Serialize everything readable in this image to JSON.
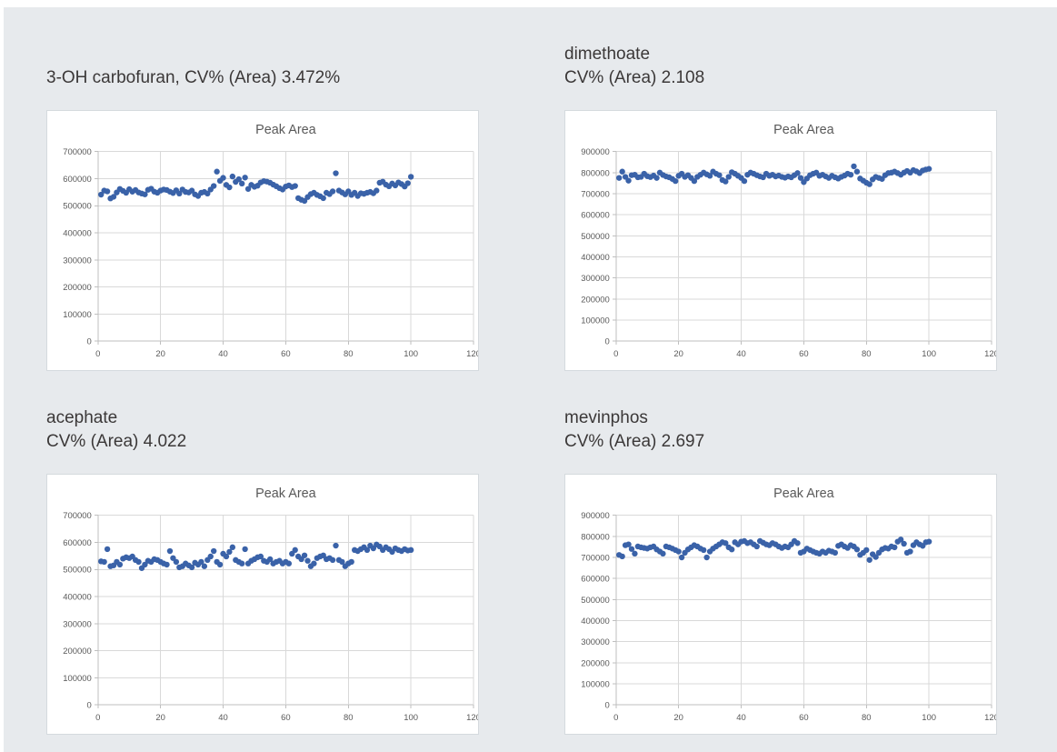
{
  "page": {
    "background_color": "#E7EAED",
    "panel_color": "#FFFFFF",
    "gridline_color": "#D9D9D9",
    "axis_color": "#BFBFBF",
    "heading_text_color": "#3B3838",
    "tick_text_color": "#595959",
    "marker_color": "#3A62A8"
  },
  "chart_data": [
    {
      "type": "scatter",
      "heading_lines": [
        "3-OH carbofuran, CV% (Area) 3.472%"
      ],
      "title": "Peak Area",
      "xlabel": "",
      "ylabel": "",
      "xlim": [
        0,
        120
      ],
      "xticks": [
        0,
        20,
        40,
        60,
        80,
        100,
        120
      ],
      "ylim": [
        0,
        700000
      ],
      "ytick_step": 100000,
      "grid": true,
      "legend": false,
      "marker_color": "#3A62A8",
      "x_start": 1,
      "x_step": 1,
      "values": [
        541000,
        556000,
        553000,
        527000,
        533000,
        549000,
        562000,
        555000,
        548000,
        561000,
        552000,
        558000,
        549000,
        545000,
        542000,
        559000,
        563000,
        552000,
        548000,
        556000,
        560000,
        558000,
        552000,
        547000,
        557000,
        545000,
        560000,
        551000,
        549000,
        556000,
        542000,
        536000,
        548000,
        551000,
        545000,
        560000,
        573000,
        626000,
        592000,
        603000,
        577000,
        568000,
        608000,
        588000,
        598000,
        582000,
        604000,
        562000,
        577000,
        570000,
        574000,
        586000,
        591000,
        589000,
        585000,
        578000,
        572000,
        565000,
        560000,
        571000,
        575000,
        569000,
        573000,
        528000,
        522000,
        518000,
        532000,
        543000,
        548000,
        540000,
        535000,
        528000,
        548000,
        543000,
        553000,
        620000,
        556000,
        549000,
        542000,
        553000,
        540000,
        548000,
        536000,
        546000,
        544000,
        548000,
        551000,
        546000,
        556000,
        585000,
        589000,
        578000,
        572000,
        582000,
        575000,
        586000,
        580000,
        571000,
        583000,
        607000
      ]
    },
    {
      "type": "scatter",
      "heading_lines": [
        "dimethoate",
        "CV% (Area) 2.108"
      ],
      "title": "Peak Area",
      "xlabel": "",
      "ylabel": "",
      "xlim": [
        0,
        120
      ],
      "xticks": [
        0,
        20,
        40,
        60,
        80,
        100,
        120
      ],
      "ylim": [
        0,
        900000
      ],
      "ytick_step": 100000,
      "grid": true,
      "legend": false,
      "marker_color": "#3A62A8",
      "x_start": 1,
      "x_step": 1,
      "values": [
        775000,
        805000,
        780000,
        762000,
        788000,
        790000,
        778000,
        780000,
        795000,
        783000,
        779000,
        786000,
        775000,
        800000,
        789000,
        782000,
        778000,
        770000,
        760000,
        785000,
        795000,
        780000,
        788000,
        775000,
        760000,
        780000,
        790000,
        800000,
        792000,
        785000,
        805000,
        795000,
        788000,
        765000,
        758000,
        780000,
        802000,
        795000,
        785000,
        775000,
        760000,
        790000,
        800000,
        795000,
        788000,
        782000,
        778000,
        795000,
        785000,
        790000,
        782000,
        786000,
        780000,
        776000,
        782000,
        778000,
        788000,
        798000,
        775000,
        755000,
        772000,
        788000,
        795000,
        800000,
        785000,
        790000,
        782000,
        775000,
        785000,
        778000,
        772000,
        780000,
        786000,
        795000,
        790000,
        830000,
        805000,
        772000,
        762000,
        752000,
        745000,
        768000,
        780000,
        775000,
        770000,
        788000,
        798000,
        800000,
        805000,
        798000,
        790000,
        800000,
        808000,
        800000,
        812000,
        806000,
        798000,
        810000,
        815000,
        818000
      ]
    },
    {
      "type": "scatter",
      "heading_lines": [
        "acephate",
        "CV% (Area) 4.022"
      ],
      "title": "Peak Area",
      "xlabel": "",
      "ylabel": "",
      "xlim": [
        0,
        120
      ],
      "xticks": [
        0,
        20,
        40,
        60,
        80,
        100,
        120
      ],
      "ylim": [
        0,
        700000
      ],
      "ytick_step": 100000,
      "grid": true,
      "legend": false,
      "marker_color": "#3A62A8",
      "x_start": 1,
      "x_step": 1,
      "values": [
        530000,
        528000,
        575000,
        512000,
        515000,
        528000,
        518000,
        540000,
        545000,
        542000,
        548000,
        535000,
        528000,
        505000,
        518000,
        532000,
        528000,
        538000,
        535000,
        528000,
        522000,
        518000,
        568000,
        542000,
        528000,
        508000,
        512000,
        522000,
        515000,
        508000,
        525000,
        518000,
        528000,
        512000,
        535000,
        548000,
        568000,
        528000,
        518000,
        558000,
        548000,
        565000,
        582000,
        535000,
        528000,
        522000,
        575000,
        522000,
        532000,
        538000,
        545000,
        548000,
        532000,
        528000,
        538000,
        522000,
        528000,
        532000,
        522000,
        528000,
        522000,
        558000,
        572000,
        548000,
        538000,
        552000,
        532000,
        512000,
        522000,
        542000,
        548000,
        552000,
        538000,
        542000,
        535000,
        588000,
        535000,
        528000,
        512000,
        522000,
        528000,
        572000,
        568000,
        575000,
        582000,
        572000,
        588000,
        578000,
        592000,
        585000,
        572000,
        582000,
        575000,
        565000,
        578000,
        572000,
        568000,
        575000,
        570000,
        572000
      ]
    },
    {
      "type": "scatter",
      "heading_lines": [
        "mevinphos",
        "CV% (Area) 2.697"
      ],
      "title": "Peak Area",
      "xlabel": "",
      "ylabel": "",
      "xlim": [
        0,
        120
      ],
      "xticks": [
        0,
        20,
        40,
        60,
        80,
        100,
        120
      ],
      "ylim": [
        0,
        900000
      ],
      "ytick_step": 100000,
      "grid": true,
      "legend": false,
      "marker_color": "#3A62A8",
      "x_start": 1,
      "x_step": 1,
      "values": [
        712000,
        705000,
        758000,
        762000,
        740000,
        718000,
        752000,
        748000,
        745000,
        742000,
        748000,
        752000,
        738000,
        728000,
        718000,
        752000,
        748000,
        742000,
        735000,
        728000,
        700000,
        722000,
        738000,
        748000,
        758000,
        752000,
        742000,
        735000,
        700000,
        728000,
        742000,
        752000,
        762000,
        772000,
        768000,
        748000,
        738000,
        772000,
        762000,
        775000,
        778000,
        768000,
        772000,
        762000,
        752000,
        778000,
        770000,
        762000,
        758000,
        768000,
        762000,
        752000,
        745000,
        752000,
        748000,
        762000,
        778000,
        768000,
        722000,
        728000,
        742000,
        735000,
        728000,
        722000,
        718000,
        728000,
        722000,
        732000,
        728000,
        722000,
        755000,
        762000,
        752000,
        745000,
        758000,
        752000,
        738000,
        712000,
        722000,
        735000,
        688000,
        715000,
        702000,
        722000,
        738000,
        745000,
        742000,
        752000,
        748000,
        775000,
        785000,
        765000,
        722000,
        728000,
        758000,
        772000,
        762000,
        755000,
        772000,
        775000
      ]
    }
  ]
}
